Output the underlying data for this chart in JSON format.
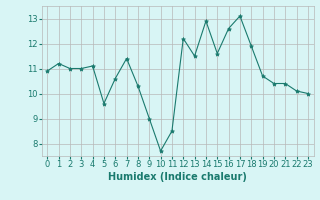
{
  "x": [
    0,
    1,
    2,
    3,
    4,
    5,
    6,
    7,
    8,
    9,
    10,
    11,
    12,
    13,
    14,
    15,
    16,
    17,
    18,
    19,
    20,
    21,
    22,
    23
  ],
  "y": [
    10.9,
    11.2,
    11.0,
    11.0,
    11.1,
    9.6,
    10.6,
    11.4,
    10.3,
    9.0,
    7.7,
    8.5,
    12.2,
    11.5,
    12.9,
    11.6,
    12.6,
    13.1,
    11.9,
    10.7,
    10.4,
    10.4,
    10.1,
    10.0
  ],
  "line_color": "#1a7a6e",
  "marker": "*",
  "marker_size": 3,
  "bg_color": "#d8f5f5",
  "grid_color": "#b8b8b8",
  "xlabel": "Humidex (Indice chaleur)",
  "xlim": [
    -0.5,
    23.5
  ],
  "ylim": [
    7.5,
    13.5
  ],
  "yticks": [
    8,
    9,
    10,
    11,
    12,
    13
  ],
  "xticks": [
    0,
    1,
    2,
    3,
    4,
    5,
    6,
    7,
    8,
    9,
    10,
    11,
    12,
    13,
    14,
    15,
    16,
    17,
    18,
    19,
    20,
    21,
    22,
    23
  ],
  "xtick_labels": [
    "0",
    "1",
    "2",
    "3",
    "4",
    "5",
    "6",
    "7",
    "8",
    "9",
    "10",
    "11",
    "12",
    "13",
    "14",
    "15",
    "16",
    "17",
    "18",
    "19",
    "20",
    "21",
    "22",
    "23"
  ],
  "xlabel_fontsize": 7,
  "tick_fontsize": 6
}
